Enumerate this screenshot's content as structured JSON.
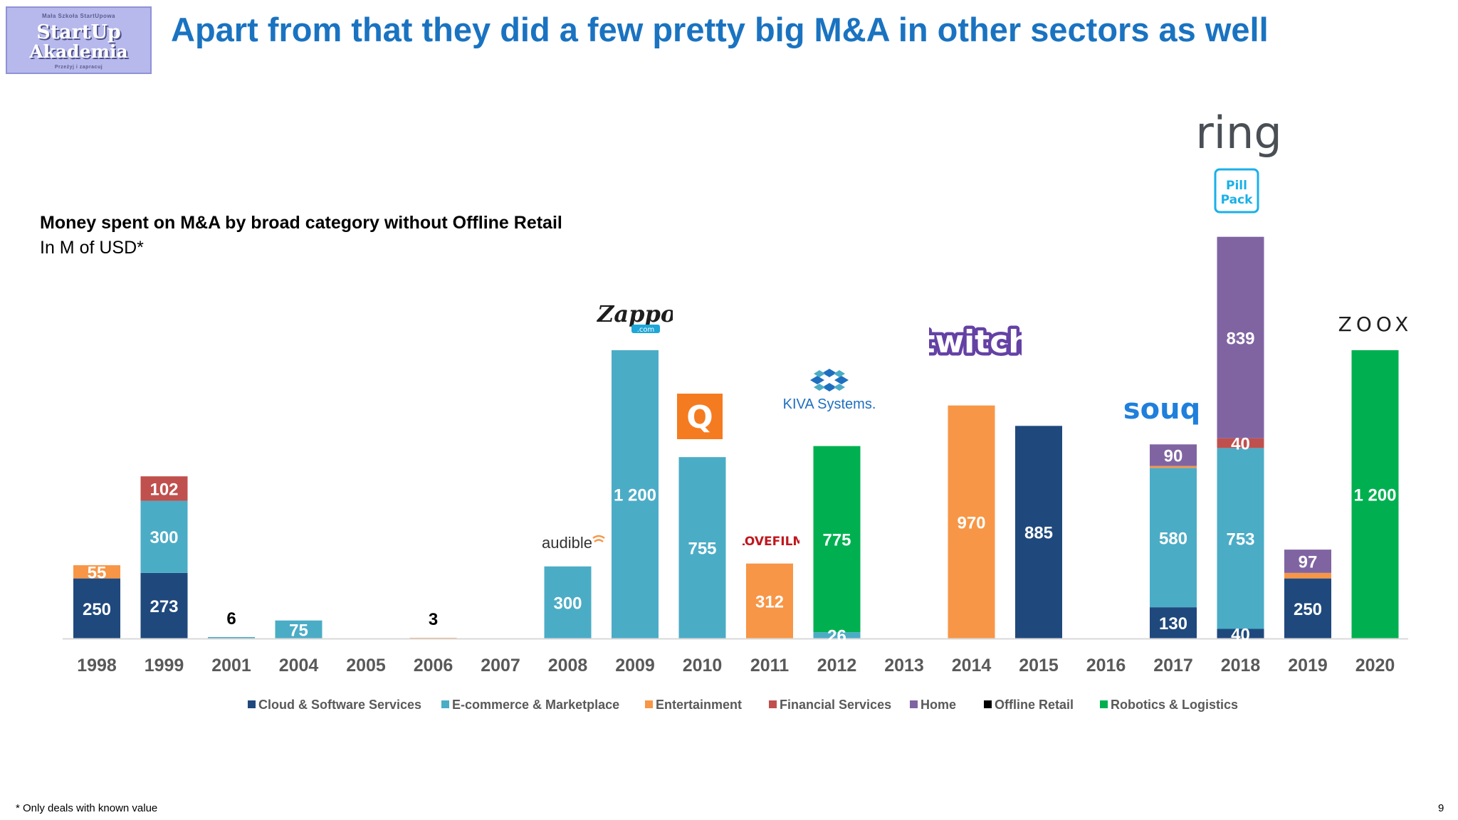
{
  "slide": {
    "title": "Apart from that they did a few pretty big M&A in other sectors as well",
    "page_number": "9",
    "footnote": "* Only deals with known value",
    "brand": {
      "top": "Mała Szkoła StartUpowa",
      "line1": "StartUp",
      "line2": "Akademia",
      "bottom": "Przeżyj i zapracuj"
    }
  },
  "company_logos": {
    "ring": "ring",
    "pillpack_1": "Pill",
    "pillpack_2": "Pack",
    "zappos": "Zappos",
    "zappos_com": ".com",
    "twitch": "twitch",
    "kiva": "KIVA Systems.",
    "souq": "souq",
    "zoox": "ZOOX",
    "audible": "audible",
    "lovefilm": "LOVEFILM",
    "quidsi": "Q"
  },
  "chart_data": {
    "type": "bar",
    "stacked": true,
    "title": "Money spent on M&A by broad category without Offline Retail",
    "subtitle": "In M of USD*",
    "categories": [
      "1998",
      "1999",
      "2001",
      "2004",
      "2005",
      "2006",
      "2007",
      "2008",
      "2009",
      "2010",
      "2011",
      "2012",
      "2013",
      "2014",
      "2015",
      "2016",
      "2017",
      "2018",
      "2019",
      "2020"
    ],
    "series": [
      {
        "name": "Cloud & Software Services",
        "color": "#1f497d",
        "values": [
          250,
          273,
          0,
          0,
          0,
          0,
          0,
          0,
          0,
          0,
          0,
          0,
          0,
          0,
          885,
          0,
          130,
          40,
          250,
          0
        ]
      },
      {
        "name": "E-commerce & Marketplace",
        "color": "#4bacc6",
        "values": [
          0,
          300,
          6,
          75,
          0,
          0,
          0,
          300,
          1200,
          755,
          0,
          26,
          0,
          0,
          0,
          0,
          580,
          753,
          0,
          0
        ]
      },
      {
        "name": "Entertainment",
        "color": "#f79646",
        "values": [
          55,
          0,
          0,
          0,
          0,
          3,
          0,
          0,
          0,
          0,
          312,
          0,
          0,
          970,
          0,
          0,
          8,
          0,
          23,
          0
        ]
      },
      {
        "name": "Financial Services",
        "color": "#c0504d",
        "values": [
          0,
          102,
          0,
          0,
          0,
          0,
          0,
          0,
          0,
          0,
          0,
          0,
          0,
          0,
          0,
          0,
          0,
          40,
          0,
          0
        ]
      },
      {
        "name": "Home",
        "color": "#8064a2",
        "values": [
          0,
          0,
          0,
          0,
          0,
          0,
          0,
          0,
          0,
          0,
          0,
          0,
          0,
          0,
          0,
          0,
          90,
          839,
          97,
          0
        ]
      },
      {
        "name": "Offline Retail",
        "color": "#000000",
        "values": [
          0,
          0,
          0,
          0,
          0,
          0,
          0,
          0,
          0,
          0,
          0,
          0,
          0,
          0,
          0,
          0,
          0,
          0,
          0,
          0
        ]
      },
      {
        "name": "Robotics & Logistics",
        "color": "#00b050",
        "values": [
          0,
          0,
          0,
          0,
          0,
          0,
          0,
          0,
          0,
          0,
          0,
          775,
          0,
          0,
          0,
          0,
          0,
          0,
          0,
          1200
        ]
      }
    ],
    "data_labels": [
      {
        "category": "1998",
        "series": "Cloud & Software Services",
        "text": "250"
      },
      {
        "category": "1998",
        "series": "Entertainment",
        "text": "55"
      },
      {
        "category": "1999",
        "series": "Cloud & Software Services",
        "text": "273"
      },
      {
        "category": "1999",
        "series": "E-commerce & Marketplace",
        "text": "300"
      },
      {
        "category": "1999",
        "series": "Financial Services",
        "text": "102"
      },
      {
        "category": "2001",
        "series": "E-commerce & Marketplace",
        "text": "6",
        "outside": true
      },
      {
        "category": "2004",
        "series": "E-commerce & Marketplace",
        "text": "75"
      },
      {
        "category": "2006",
        "series": "Entertainment",
        "text": "3",
        "outside": true
      },
      {
        "category": "2008",
        "series": "E-commerce & Marketplace",
        "text": "300"
      },
      {
        "category": "2009",
        "series": "E-commerce & Marketplace",
        "text": "1 200"
      },
      {
        "category": "2010",
        "series": "E-commerce & Marketplace",
        "text": "755"
      },
      {
        "category": "2011",
        "series": "Entertainment",
        "text": "312"
      },
      {
        "category": "2012",
        "series": "E-commerce & Marketplace",
        "text": "26"
      },
      {
        "category": "2012",
        "series": "Robotics & Logistics",
        "text": "775"
      },
      {
        "category": "2014",
        "series": "Entertainment",
        "text": "970"
      },
      {
        "category": "2015",
        "series": "Cloud & Software Services",
        "text": "885"
      },
      {
        "category": "2017",
        "series": "Cloud & Software Services",
        "text": "130"
      },
      {
        "category": "2017",
        "series": "E-commerce & Marketplace",
        "text": "580"
      },
      {
        "category": "2017",
        "series": "Home",
        "text": "90"
      },
      {
        "category": "2018",
        "series": "Cloud & Software Services",
        "text": "40"
      },
      {
        "category": "2018",
        "series": "E-commerce & Marketplace",
        "text": "753"
      },
      {
        "category": "2018",
        "series": "Financial Services",
        "text": "40"
      },
      {
        "category": "2018",
        "series": "Home",
        "text": "839"
      },
      {
        "category": "2019",
        "series": "Cloud & Software Services",
        "text": "250"
      },
      {
        "category": "2019",
        "series": "Home",
        "text": "97"
      },
      {
        "category": "2020",
        "series": "Robotics & Logistics",
        "text": "1 200"
      }
    ],
    "legend_position": "bottom",
    "grid": false
  }
}
